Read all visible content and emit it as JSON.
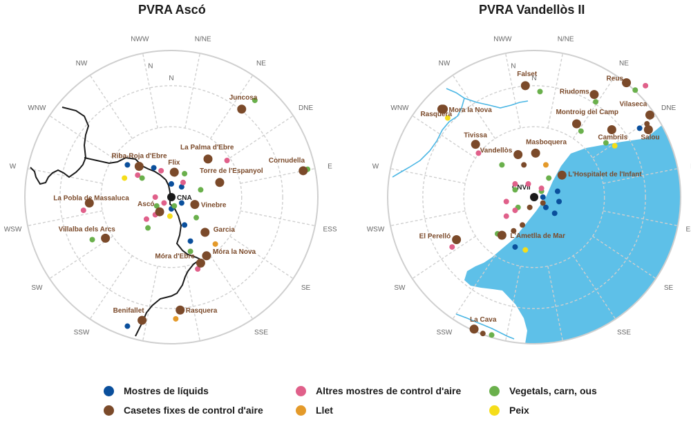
{
  "colors": {
    "liquids": "#0a4f9c",
    "stations": "#7b4a2a",
    "air": "#e0608a",
    "vegetal": "#6ab04c",
    "milk": "#e49a2a",
    "fish": "#f5dd1a",
    "sea": "#5ec0e8",
    "ring": "#cfcfcf",
    "label": "#7b4a2a",
    "river": "#1a1a1a",
    "river_blue": "#4ab6e4"
  },
  "directions": [
    "N",
    "N/NE",
    "NE",
    "DNE",
    "E",
    "ESS",
    "SE",
    "SSE",
    "SSW",
    "SW",
    "WSW",
    "W",
    "WNW",
    "NW",
    "NWW",
    "N"
  ],
  "maps": [
    {
      "title": "PVRA Ascó",
      "center_label": "CNA",
      "towns": [
        {
          "name": "Juncosa",
          "dx": 0.48,
          "dy": -0.6
        },
        {
          "name": "La Palma d'Ebre",
          "dx": 0.25,
          "dy": -0.26
        },
        {
          "name": "Cornudella",
          "dx": 0.9,
          "dy": -0.18
        },
        {
          "name": "Riba-Roja d'Ebre",
          "dx": -0.22,
          "dy": -0.21
        },
        {
          "name": "Flix",
          "dx": 0.02,
          "dy": -0.17
        },
        {
          "name": "Torre de l'Espanyol",
          "dx": 0.33,
          "dy": -0.1
        },
        {
          "name": "La Pobla de Massaluca",
          "dx": -0.56,
          "dy": 0.04
        },
        {
          "name": "Ascó",
          "dx": -0.08,
          "dy": 0.1
        },
        {
          "name": "Vinebre",
          "dx": 0.16,
          "dy": 0.05
        },
        {
          "name": "Garcia",
          "dx": 0.23,
          "dy": 0.24
        },
        {
          "name": "Villalba dels Arcs",
          "dx": -0.45,
          "dy": 0.28
        },
        {
          "name": "Móra la Nova",
          "dx": 0.24,
          "dy": 0.4
        },
        {
          "name": "Móra d'Ebre",
          "dx": 0.2,
          "dy": 0.45
        },
        {
          "name": "Benifallet",
          "dx": -0.2,
          "dy": 0.84
        },
        {
          "name": "Rasquera",
          "dx": 0.06,
          "dy": 0.77
        }
      ],
      "samples": [
        {
          "type": "liquids",
          "dx": -0.3,
          "dy": -0.22
        },
        {
          "type": "liquids",
          "dx": -0.12,
          "dy": -0.2
        },
        {
          "type": "liquids",
          "dx": 0.0,
          "dy": -0.09
        },
        {
          "type": "liquids",
          "dx": 0.07,
          "dy": -0.07
        },
        {
          "type": "liquids",
          "dx": 0.07,
          "dy": 0.04
        },
        {
          "type": "liquids",
          "dx": 0.0,
          "dy": 0.08
        },
        {
          "type": "liquids",
          "dx": 0.09,
          "dy": 0.19
        },
        {
          "type": "liquids",
          "dx": 0.13,
          "dy": 0.3
        },
        {
          "type": "liquids",
          "dx": -0.3,
          "dy": 0.88
        },
        {
          "type": "air",
          "dx": 0.38,
          "dy": -0.25
        },
        {
          "type": "air",
          "dx": -0.23,
          "dy": -0.15
        },
        {
          "type": "air",
          "dx": -0.07,
          "dy": -0.18
        },
        {
          "type": "air",
          "dx": 0.08,
          "dy": -0.1
        },
        {
          "type": "air",
          "dx": -0.11,
          "dy": 0.0
        },
        {
          "type": "air",
          "dx": -0.05,
          "dy": 0.04
        },
        {
          "type": "air",
          "dx": -0.11,
          "dy": 0.12
        },
        {
          "type": "air",
          "dx": -0.17,
          "dy": 0.15
        },
        {
          "type": "air",
          "dx": 0.18,
          "dy": 0.49
        },
        {
          "type": "air",
          "dx": -0.6,
          "dy": 0.09
        },
        {
          "type": "vegetal",
          "dx": 0.57,
          "dy": -0.66
        },
        {
          "type": "vegetal",
          "dx": 0.93,
          "dy": -0.19
        },
        {
          "type": "vegetal",
          "dx": 0.09,
          "dy": -0.16
        },
        {
          "type": "vegetal",
          "dx": 0.2,
          "dy": -0.05
        },
        {
          "type": "vegetal",
          "dx": -0.1,
          "dy": 0.06
        },
        {
          "type": "vegetal",
          "dx": 0.02,
          "dy": 0.06
        },
        {
          "type": "vegetal",
          "dx": 0.17,
          "dy": 0.14
        },
        {
          "type": "vegetal",
          "dx": -0.16,
          "dy": 0.21
        },
        {
          "type": "vegetal",
          "dx": 0.13,
          "dy": 0.37
        },
        {
          "type": "vegetal",
          "dx": -0.54,
          "dy": 0.29
        },
        {
          "type": "vegetal",
          "dx": -0.2,
          "dy": -0.13
        },
        {
          "type": "milk",
          "dx": 0.3,
          "dy": 0.32
        },
        {
          "type": "milk",
          "dx": 0.03,
          "dy": 0.83
        },
        {
          "type": "fish",
          "dx": -0.32,
          "dy": -0.13
        },
        {
          "type": "fish",
          "dx": -0.01,
          "dy": 0.13
        }
      ]
    },
    {
      "title": "PVRA Vandellòs II",
      "center_label": "CNVII",
      "towns": [
        {
          "name": "Falset",
          "dx": -0.06,
          "dy": -0.76
        },
        {
          "name": "Rasquera",
          "dx": -0.63,
          "dy": -0.6
        },
        {
          "name": "Mora la Nova",
          "dx": -0.62,
          "dy": -0.6
        },
        {
          "name": "Riudoms",
          "dx": 0.41,
          "dy": -0.7
        },
        {
          "name": "Reus",
          "dx": 0.63,
          "dy": -0.78
        },
        {
          "name": "Montroig del Camp",
          "dx": 0.29,
          "dy": -0.5
        },
        {
          "name": "Vilaseca",
          "dx": 0.79,
          "dy": -0.56
        },
        {
          "name": "Cambrils",
          "dx": 0.53,
          "dy": -0.46
        },
        {
          "name": "Salou",
          "dx": 0.78,
          "dy": -0.46
        },
        {
          "name": "Tivissa",
          "dx": -0.4,
          "dy": -0.36
        },
        {
          "name": "Masboquera",
          "dx": 0.01,
          "dy": -0.3
        },
        {
          "name": "Vandellòs",
          "dx": -0.11,
          "dy": -0.29
        },
        {
          "name": "L'Hospitalet de l'Infant",
          "dx": 0.19,
          "dy": -0.15
        },
        {
          "name": "El Perelló",
          "dx": -0.53,
          "dy": 0.29
        },
        {
          "name": "L'Ametlla de Mar",
          "dx": -0.22,
          "dy": 0.26
        },
        {
          "name": "La Cava",
          "dx": -0.41,
          "dy": 0.9
        }
      ],
      "samples": [
        {
          "type": "vegetal",
          "dx": 0.04,
          "dy": -0.72
        },
        {
          "type": "vegetal",
          "dx": 0.42,
          "dy": -0.65
        },
        {
          "type": "vegetal",
          "dx": 0.69,
          "dy": -0.73
        },
        {
          "type": "vegetal",
          "dx": 0.32,
          "dy": -0.45
        },
        {
          "type": "vegetal",
          "dx": 0.49,
          "dy": -0.37
        },
        {
          "type": "vegetal",
          "dx": -0.22,
          "dy": -0.22
        },
        {
          "type": "vegetal",
          "dx": -0.13,
          "dy": -0.05
        },
        {
          "type": "vegetal",
          "dx": -0.11,
          "dy": 0.07
        },
        {
          "type": "vegetal",
          "dx": 0.1,
          "dy": -0.13
        },
        {
          "type": "vegetal",
          "dx": 0.05,
          "dy": -0.04
        },
        {
          "type": "vegetal",
          "dx": -0.25,
          "dy": 0.25
        },
        {
          "type": "vegetal",
          "dx": -0.29,
          "dy": 0.94
        },
        {
          "type": "air",
          "dx": 0.76,
          "dy": -0.76
        },
        {
          "type": "air",
          "dx": -0.38,
          "dy": -0.3
        },
        {
          "type": "air",
          "dx": -0.13,
          "dy": -0.09
        },
        {
          "type": "air",
          "dx": -0.04,
          "dy": -0.09
        },
        {
          "type": "air",
          "dx": 0.05,
          "dy": -0.06
        },
        {
          "type": "air",
          "dx": -0.19,
          "dy": 0.03
        },
        {
          "type": "air",
          "dx": -0.13,
          "dy": 0.09
        },
        {
          "type": "air",
          "dx": -0.56,
          "dy": 0.34
        },
        {
          "type": "air",
          "dx": -0.19,
          "dy": 0.13
        },
        {
          "type": "liquids",
          "dx": 0.72,
          "dy": -0.47
        },
        {
          "type": "liquids",
          "dx": 0.06,
          "dy": 0.0
        },
        {
          "type": "liquids",
          "dx": 0.16,
          "dy": -0.04
        },
        {
          "type": "liquids",
          "dx": 0.17,
          "dy": 0.03
        },
        {
          "type": "liquids",
          "dx": 0.08,
          "dy": 0.07
        },
        {
          "type": "liquids",
          "dx": 0.14,
          "dy": 0.11
        },
        {
          "type": "liquids",
          "dx": -0.13,
          "dy": 0.34
        },
        {
          "type": "stations",
          "dx": -0.07,
          "dy": -0.22
        },
        {
          "type": "stations",
          "dx": 0.06,
          "dy": 0.04
        },
        {
          "type": "stations",
          "dx": -0.03,
          "dy": 0.07
        },
        {
          "type": "stations",
          "dx": -0.08,
          "dy": 0.19
        },
        {
          "type": "stations",
          "dx": -0.14,
          "dy": 0.23
        },
        {
          "type": "stations",
          "dx": 0.77,
          "dy": -0.5
        },
        {
          "type": "stations",
          "dx": -0.35,
          "dy": 0.93
        },
        {
          "type": "milk",
          "dx": 0.79,
          "dy": -0.55
        },
        {
          "type": "milk",
          "dx": 0.08,
          "dy": -0.22
        },
        {
          "type": "fish",
          "dx": -0.59,
          "dy": -0.54
        },
        {
          "type": "fish",
          "dx": 0.55,
          "dy": -0.35
        },
        {
          "type": "fish",
          "dx": -0.06,
          "dy": 0.36
        }
      ]
    }
  ],
  "legend": [
    {
      "key": "liquids",
      "label": "Mostres de líquids"
    },
    {
      "key": "air",
      "label": "Altres mostres de control d'aire"
    },
    {
      "key": "vegetal",
      "label": "Vegetals, carn, ous"
    },
    {
      "key": "stations",
      "label": "Casetes fixes de control d'aire"
    },
    {
      "key": "milk",
      "label": "Llet"
    },
    {
      "key": "fish",
      "label": "Peix"
    }
  ]
}
